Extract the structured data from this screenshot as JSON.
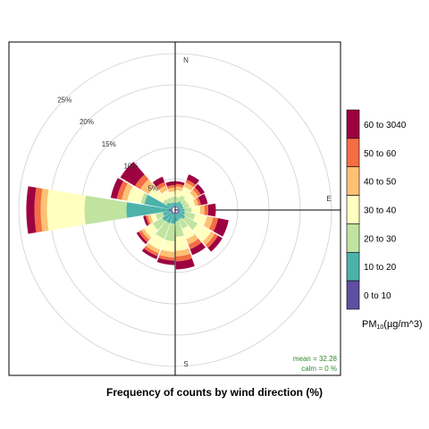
{
  "chart_data": {
    "type": "polar-bar",
    "title": "",
    "xlabel": "Frequency of counts by wind direction (%)",
    "legend": {
      "title_main": "PM",
      "title_sub": "10",
      "title_unit": "(µg/m^3)",
      "placement": "right",
      "entries": [
        {
          "label": "0 to 10",
          "color": "#5E4FA2"
        },
        {
          "label": "10 to 20",
          "color": "#4DB2AA"
        },
        {
          "label": "20 to 30",
          "color": "#C0E3A0"
        },
        {
          "label": "30 to 40",
          "color": "#FFFFC0"
        },
        {
          "label": "40 to 50",
          "color": "#FDC174"
        },
        {
          "label": "50 to 60",
          "color": "#F46D43"
        },
        {
          "label": "60 to 3040",
          "color": "#9E0142"
        }
      ]
    },
    "compass": [
      "N",
      "E",
      "S"
    ],
    "radial_ticks": [
      {
        "value": 5,
        "label": "5%"
      },
      {
        "value": 10,
        "label": "10%"
      },
      {
        "value": 15,
        "label": "15%"
      },
      {
        "value": 20,
        "label": "20%"
      },
      {
        "value": 25,
        "label": "25%"
      }
    ],
    "rmax": 27,
    "stats": {
      "mean": "mean = 32.28",
      "calm": "calm = 0 %"
    },
    "sector_width_deg": 20,
    "series_unit": "cumulative %",
    "sectors": [
      {
        "dir": 10,
        "cum": [
          0.6,
          1.2,
          2.1,
          3.2,
          3.8,
          4.2,
          4.6
        ]
      },
      {
        "dir": 30,
        "cum": [
          0.6,
          1.5,
          2.5,
          4.0,
          4.7,
          5.2,
          6.1
        ]
      },
      {
        "dir": 50,
        "cum": [
          0.6,
          1.4,
          2.2,
          3.6,
          4.3,
          4.8,
          5.5
        ]
      },
      {
        "dir": 70,
        "cum": [
          0.6,
          1.3,
          2.3,
          3.3,
          3.8,
          4.2,
          5.3
        ]
      },
      {
        "dir": 90,
        "cum": [
          0.6,
          1.5,
          2.6,
          4.0,
          4.7,
          5.3,
          6.5
        ]
      },
      {
        "dir": 110,
        "cum": [
          0.7,
          1.6,
          3.3,
          5.2,
          6.2,
          7.0,
          8.7
        ]
      },
      {
        "dir": 130,
        "cum": [
          0.7,
          1.9,
          4.2,
          6.7,
          7.4,
          8.0,
          8.8
        ]
      },
      {
        "dir": 150,
        "cum": [
          0.7,
          1.6,
          3.2,
          5.0,
          5.9,
          6.7,
          7.7
        ]
      },
      {
        "dir": 170,
        "cum": [
          0.6,
          1.8,
          4.3,
          6.5,
          7.4,
          8.2,
          9.5
        ]
      },
      {
        "dir": 190,
        "cum": [
          0.6,
          2.2,
          5.0,
          6.7,
          7.6,
          8.1,
          8.8
        ]
      },
      {
        "dir": 210,
        "cum": [
          0.7,
          2.3,
          4.9,
          6.8,
          7.4,
          7.9,
          8.4
        ]
      },
      {
        "dir": 230,
        "cum": [
          0.7,
          2.4,
          4.2,
          5.8,
          6.3,
          6.8,
          7.2
        ]
      },
      {
        "dir": 250,
        "cum": [
          0.7,
          2.0,
          3.2,
          4.0,
          4.5,
          4.8,
          5.2
        ]
      },
      {
        "dir": 270,
        "cum": [
          1.0,
          7.8,
          14.5,
          20.5,
          21.5,
          22.5,
          23.8
        ]
      },
      {
        "dir": 290,
        "cum": [
          0.6,
          5.0,
          5.6,
          7.8,
          8.7,
          9.5,
          10.5
        ]
      },
      {
        "dir": 310,
        "cum": [
          0.6,
          1.6,
          2.3,
          5.0,
          6.5,
          7.5,
          10.2
        ]
      },
      {
        "dir": 330,
        "cum": [
          0.6,
          1.3,
          2.1,
          3.4,
          4.2,
          4.8,
          5.7
        ]
      },
      {
        "dir": 350,
        "cum": [
          0.6,
          1.2,
          2.1,
          3.0,
          3.6,
          4.0,
          4.6
        ]
      }
    ]
  }
}
